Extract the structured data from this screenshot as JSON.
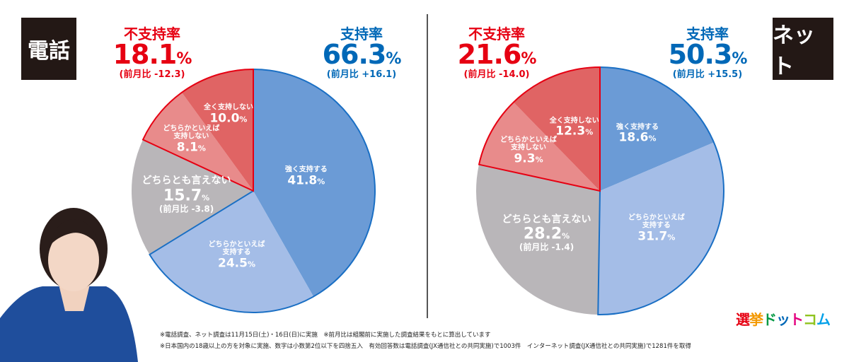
{
  "chart_data": [
    {
      "type": "pie",
      "id": "phone",
      "panel_label": "電話",
      "support": {
        "label": "支持率",
        "value": "66.3",
        "unit": "%",
        "change": "(前月比 +16.1)"
      },
      "nonsupport": {
        "label": "不支持率",
        "value": "18.1",
        "unit": "%",
        "change": "(前月比 -12.3)"
      },
      "slices": [
        {
          "name": "強く支持する",
          "value": 41.8,
          "color": "#6b9bd6"
        },
        {
          "name": "どちらかといえば\n支持する",
          "value": 24.5,
          "color": "#a4bde7"
        },
        {
          "name": "どちらとも言えない",
          "value": 15.7,
          "color": "#b9b6b9",
          "change": "(前月比 -3.8)"
        },
        {
          "name": "どちらかといえば\n支持しない",
          "value": 8.1,
          "color": "#e88b8b"
        },
        {
          "name": "全く支持しない",
          "value": 10.0,
          "color": "#e06464"
        }
      ]
    },
    {
      "type": "pie",
      "id": "net",
      "panel_label": "ネット",
      "support": {
        "label": "支持率",
        "value": "50.3",
        "unit": "%",
        "change": "(前月比 +15.5)"
      },
      "nonsupport": {
        "label": "不支持率",
        "value": "21.6",
        "unit": "%",
        "change": "(前月比 -14.0)"
      },
      "slices": [
        {
          "name": "強く支持する",
          "value": 18.6,
          "color": "#6b9bd6"
        },
        {
          "name": "どちらかといえば\n支持する",
          "value": 31.7,
          "color": "#a4bde7"
        },
        {
          "name": "どちらとも言えない",
          "value": 28.2,
          "color": "#b9b6b9",
          "change": "(前月比 -1.4)"
        },
        {
          "name": "どちらかといえば\n支持しない",
          "value": 9.3,
          "color": "#e88b8b"
        },
        {
          "name": "全く支持しない",
          "value": 12.3,
          "color": "#e06464"
        }
      ]
    }
  ],
  "percent_unit": "%",
  "notes": [
    "※電話調査、ネット調査は11月15日(土)・16日(日)に実施　※前月比は組閣前に実施した調査結果をもとに算出しています",
    "※日本国内の18歳以上の方を対象に実施、数字は小数第2位以下を四捨五入　有効回答数は電話調査(JX通信社との共同実施)で1003件　インターネット調査(JX通信社との共同実施)で1281件を取得"
  ],
  "logo": {
    "text": "選挙ドットコム",
    "colors": [
      "#e60012",
      "#f39800",
      "#009944",
      "#0068b7",
      "#e4007f",
      "#8fc31f",
      "#00a0e9"
    ]
  }
}
